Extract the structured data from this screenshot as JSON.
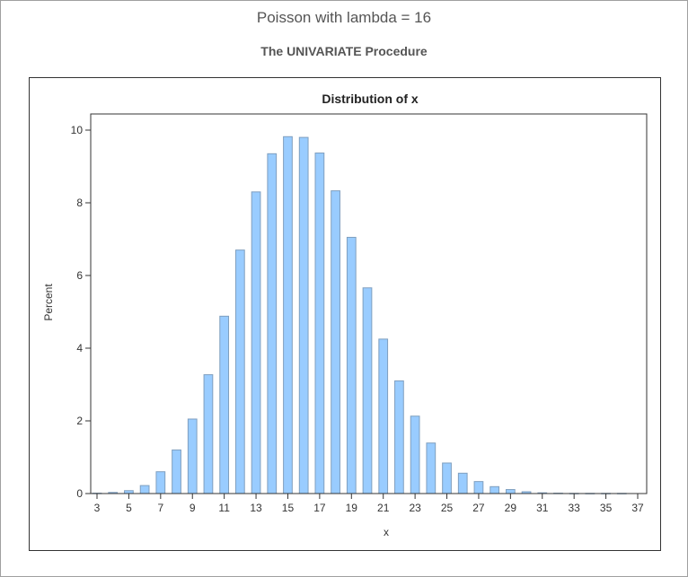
{
  "page": {
    "title": "Poisson with lambda = 16",
    "subtitle": "The UNIVARIATE Procedure"
  },
  "chart_data": {
    "type": "bar",
    "title": "Distribution of x",
    "xlabel": "x",
    "ylabel": "Percent",
    "xlim": [
      3,
      37
    ],
    "ylim": [
      0,
      10
    ],
    "xticks": [
      3,
      5,
      7,
      9,
      11,
      13,
      15,
      17,
      19,
      21,
      23,
      25,
      27,
      29,
      31,
      33,
      35,
      37
    ],
    "yticks": [
      0,
      2,
      4,
      6,
      8,
      10
    ],
    "x": [
      3,
      4,
      5,
      6,
      7,
      8,
      9,
      10,
      11,
      12,
      13,
      14,
      15,
      16,
      17,
      18,
      19,
      20,
      21,
      22,
      23,
      24,
      25,
      26,
      27,
      28,
      29,
      30,
      31,
      32,
      33,
      34,
      35,
      36
    ],
    "values": [
      0.01,
      0.03,
      0.08,
      0.22,
      0.6,
      1.2,
      2.05,
      3.27,
      4.88,
      6.7,
      8.3,
      9.35,
      9.82,
      9.8,
      9.37,
      8.33,
      7.05,
      5.66,
      4.25,
      3.1,
      2.13,
      1.39,
      0.84,
      0.56,
      0.33,
      0.19,
      0.11,
      0.05,
      0.02,
      0.01,
      0.005,
      0.005,
      0.005,
      0.005
    ],
    "bar_color": "#99ccff",
    "bar_edge": "#7f9fbf",
    "grid": false
  }
}
